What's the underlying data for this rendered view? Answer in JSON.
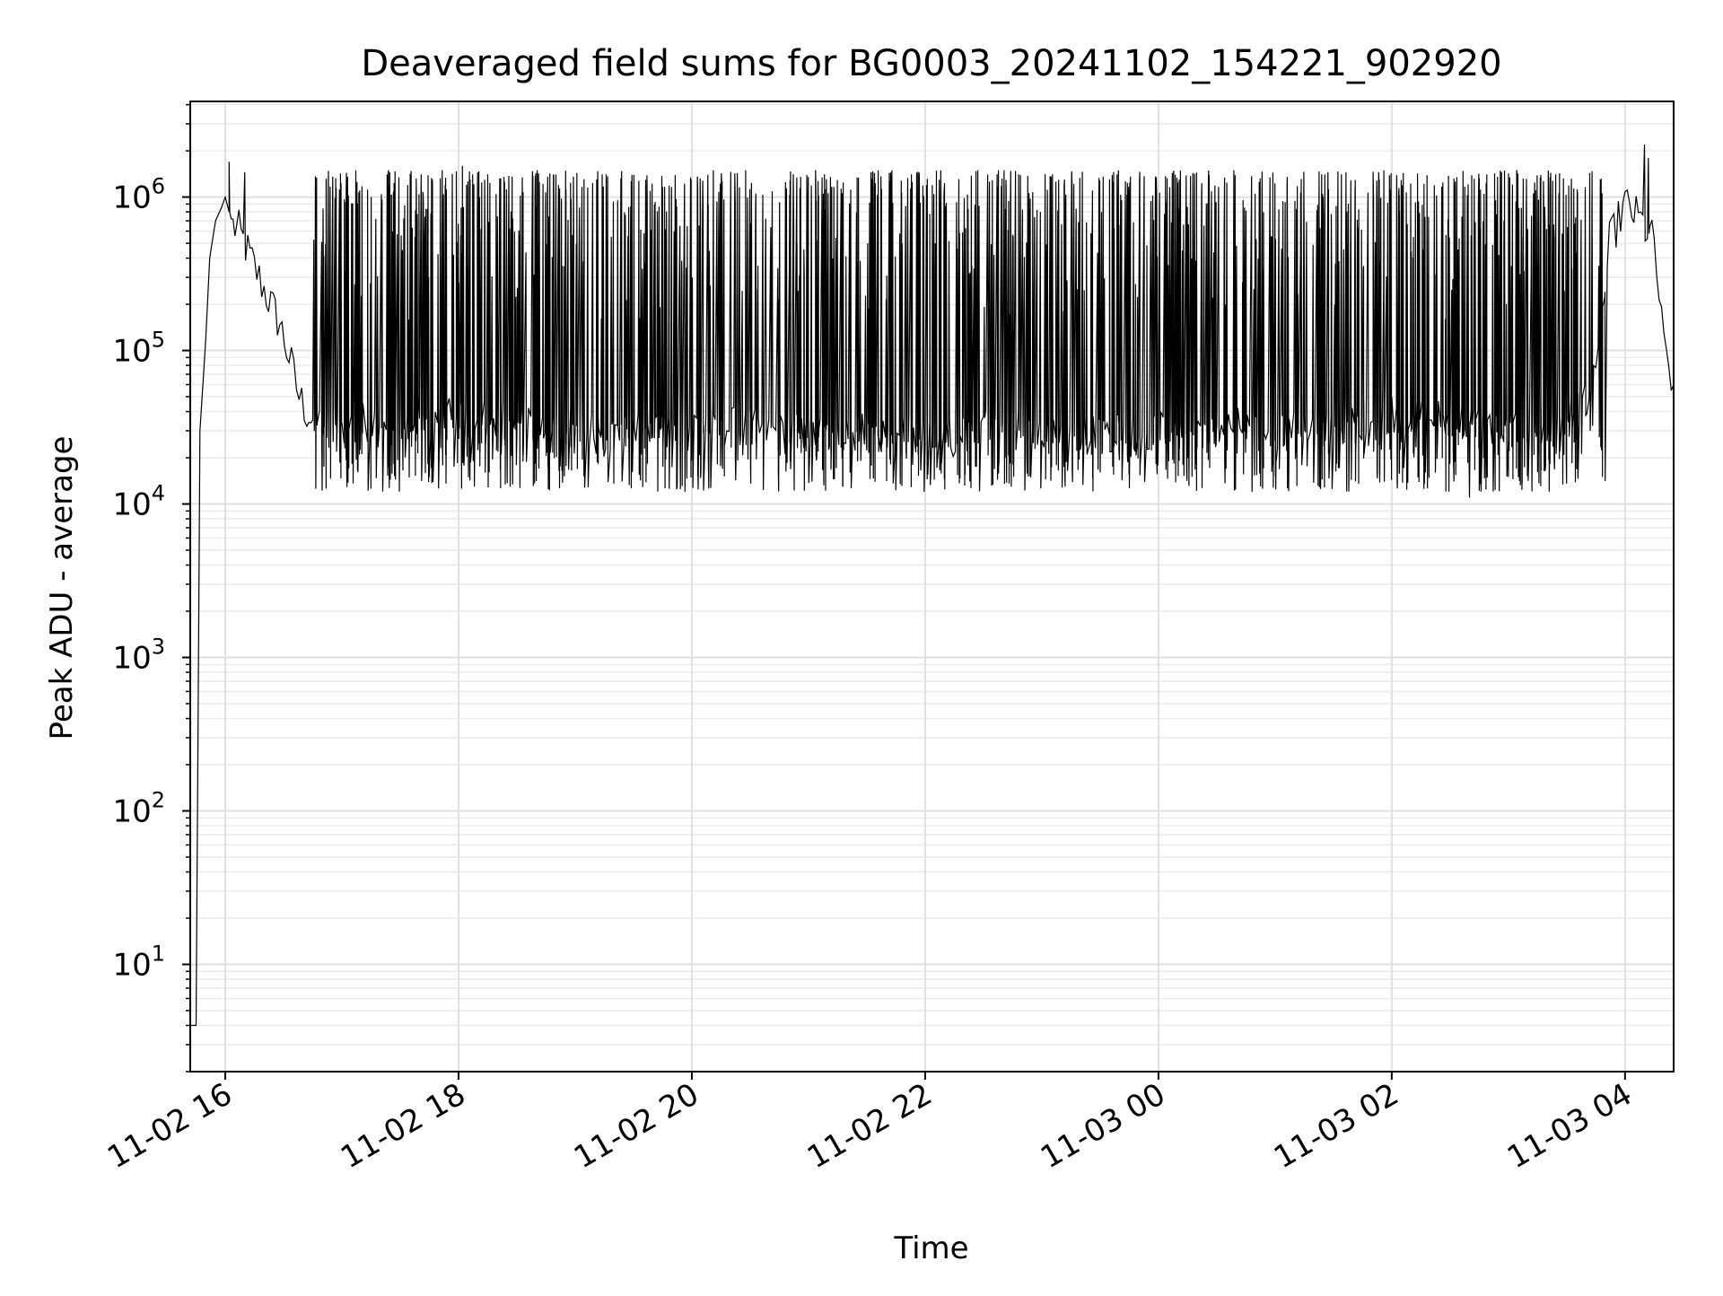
{
  "chart_data": {
    "type": "line",
    "title": "Deaveraged field sums for BG0003_20241102_154221_902920",
    "xlabel": "Time",
    "ylabel": "Peak ADU - average",
    "x_scale": "time",
    "y_scale": "log",
    "xlim": [
      "2024-11-02 15:42",
      "2024-11-03 04:25"
    ],
    "ylim": [
      2,
      4200000
    ],
    "x_ticks": [
      "11-02 16",
      "11-02 18",
      "11-02 20",
      "11-02 22",
      "11-03 00",
      "11-03 02",
      "11-03 04"
    ],
    "y_ticks": [
      10,
      100,
      1000,
      10000,
      100000,
      1000000
    ],
    "grid": true,
    "grid_minor_y": true,
    "line_color": "#000000",
    "series": [
      {
        "x": [
          "2024-11-02 15:42",
          "2024-11-02 15:45",
          "2024-11-02 15:47",
          "2024-11-02 15:50",
          "2024-11-02 15:52",
          "2024-11-02 15:55",
          "2024-11-02 15:58",
          "2024-11-02 16:00",
          "2024-11-02 16:02",
          "2024-11-02 16:04",
          "2024-11-02 16:07",
          "2024-11-02 16:15",
          "2024-11-02 16:20",
          "2024-11-02 16:28",
          "2024-11-02 16:34",
          "2024-11-02 16:38",
          "2024-11-02 16:42",
          "2024-11-02 16:45",
          "2024-11-02 17:00",
          "2024-11-02 17:30",
          "2024-11-02 18:00",
          "2024-11-02 18:30",
          "2024-11-02 19:00",
          "2024-11-02 19:30",
          "2024-11-02 20:00",
          "2024-11-02 20:30",
          "2024-11-02 21:00",
          "2024-11-02 21:30",
          "2024-11-02 22:00",
          "2024-11-02 22:30",
          "2024-11-02 23:00",
          "2024-11-02 23:30",
          "2024-11-03 00:00",
          "2024-11-03 00:30",
          "2024-11-03 01:00",
          "2024-11-03 01:30",
          "2024-11-03 02:00",
          "2024-11-03 02:30",
          "2024-11-03 03:00",
          "2024-11-03 03:30",
          "2024-11-03 03:45",
          "2024-11-03 03:52",
          "2024-11-03 04:00",
          "2024-11-03 04:08",
          "2024-11-03 04:15",
          "2024-11-03 04:20",
          "2024-11-03 04:25"
        ],
        "y": [
          4,
          4,
          30000,
          120000,
          400000,
          700000,
          850000,
          1000000,
          800000,
          650000,
          600000,
          350000,
          250000,
          150000,
          80000,
          50000,
          40000,
          35000,
          32000,
          38000,
          35000,
          40000,
          30000,
          28000,
          35000,
          30000,
          28000,
          30000,
          25000,
          30000,
          28000,
          30000,
          30000,
          32000,
          30000,
          32000,
          40000,
          35000,
          30000,
          40000,
          60000,
          500000,
          900000,
          700000,
          500000,
          100000,
          60000
        ],
        "spikes": {
          "start": "2024-11-02 16:45",
          "end": "2024-11-03 03:50",
          "count": 950,
          "min": 12000,
          "max": 1500000
        },
        "extreme_peaks": [
          {
            "x": "2024-11-02 16:02",
            "y": 1700000
          },
          {
            "x": "2024-11-02 18:02",
            "y": 1600000
          },
          {
            "x": "2024-11-02 16:10",
            "y": 1450000
          },
          {
            "x": "2024-11-03 04:10",
            "y": 2200000
          },
          {
            "x": "2024-11-03 04:12",
            "y": 1800000
          }
        ],
        "extreme_dips": [
          {
            "x": "2024-11-02 23:12",
            "y": 13000
          },
          {
            "x": "2024-11-03 02:40",
            "y": 11000
          },
          {
            "x": "2024-11-03 02:32",
            "y": 14000
          },
          {
            "x": "2024-11-03 03:00",
            "y": 15000
          }
        ]
      }
    ]
  }
}
